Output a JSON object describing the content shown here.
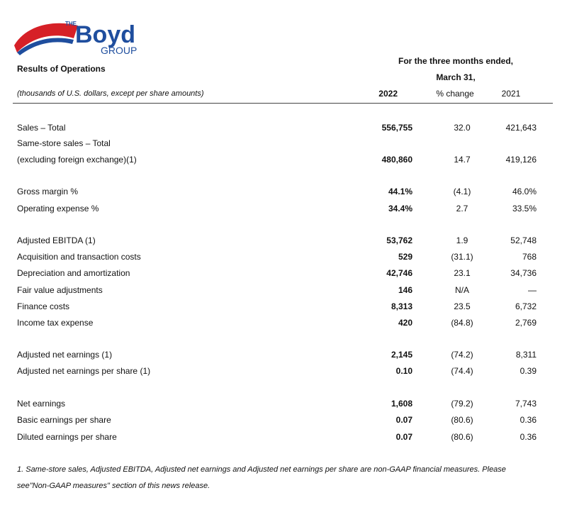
{
  "logo": {
    "small": "THE",
    "main": "Boyd",
    "sub": "GROUP"
  },
  "header": {
    "title": "Results of Operations",
    "period_line1": "For the three months ended,",
    "period_line2": "March 31,",
    "note": "(thousands of U.S. dollars, except per share amounts)",
    "columns": [
      "2022",
      "% change",
      "2021"
    ]
  },
  "table": {
    "rows": [
      [
        "Sales – Total",
        "556,755",
        "32.0",
        "421,643"
      ],
      [
        "Same-store sales – Total"
      ],
      [
        "(excluding foreign exchange)(1)",
        "480,860",
        "14.7",
        "419,126"
      ],
      [
        "Gross margin %",
        "44.1%",
        "(4.1)",
        "46.0%"
      ],
      [
        "Operating expense %",
        "34.4%",
        "2.7",
        "33.5%"
      ],
      [
        "Adjusted EBITDA (1)",
        "53,762",
        "1.9",
        "52,748"
      ],
      [
        "Acquisition and transaction costs",
        "529",
        "(31.1)",
        "768"
      ],
      [
        "Depreciation and amortization",
        "42,746",
        "23.1",
        "34,736"
      ],
      [
        "Fair value adjustments",
        "146",
        "N/A",
        "—"
      ],
      [
        "Finance costs",
        "8,313",
        "23.5",
        "6,732"
      ],
      [
        "Income tax expense",
        "420",
        "(84.8)",
        "2,769"
      ],
      [
        "Adjusted net earnings (1)",
        "2,145",
        "(74.2)",
        "8,311"
      ],
      [
        "Adjusted net earnings per share (1)",
        "0.10",
        "(74.4)",
        "0.39"
      ],
      [
        "Net earnings",
        "1,608",
        "(79.2)",
        "7,743"
      ],
      [
        "Basic earnings per share",
        "0.07",
        "(80.6)",
        "0.36"
      ],
      [
        "Diluted earnings per share",
        "0.07",
        "(80.6)",
        "0.36"
      ]
    ]
  },
  "footnote": {
    "lines": [
      "1. Same-store sales, Adjusted EBITDA, Adjusted net earnings and Adjusted net earnings per share are non-GAAP financial measures.  Please",
      "see\"Non-GAAP measures\" section of this news release."
    ]
  }
}
